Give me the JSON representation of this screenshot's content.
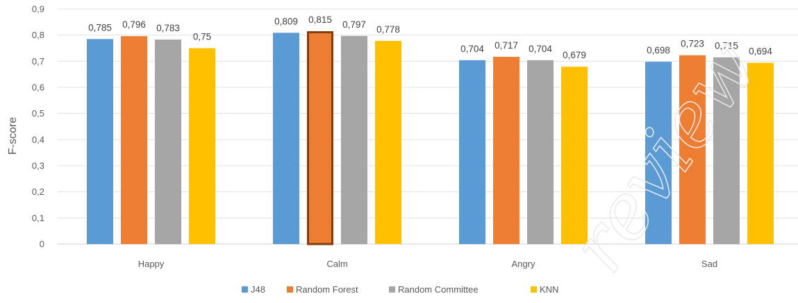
{
  "chart_data": {
    "type": "bar",
    "categories": [
      "Happy",
      "Calm",
      "Angry",
      "Sad"
    ],
    "series": [
      {
        "name": "J48",
        "values": [
          0.785,
          0.809,
          0.704,
          0.698
        ],
        "labels": [
          "0,785",
          "0,809",
          "0,704",
          "0,698"
        ],
        "color": "#5b9bd5"
      },
      {
        "name": "Random Forest",
        "values": [
          0.796,
          0.815,
          0.717,
          0.723
        ],
        "labels": [
          "0,796",
          "0,815",
          "0,717",
          "0,723"
        ],
        "color": "#ed7d31"
      },
      {
        "name": "Random Committee",
        "values": [
          0.783,
          0.797,
          0.704,
          0.715
        ],
        "labels": [
          "0,783",
          "0,797",
          "0,704",
          "0,715"
        ],
        "color": "#a5a5a5"
      },
      {
        "name": "KNN",
        "values": [
          0.75,
          0.778,
          0.679,
          0.694
        ],
        "labels": [
          "0,75",
          "0,778",
          "0,679",
          "0,694"
        ],
        "color": "#ffc000"
      }
    ],
    "title": "",
    "xlabel": "",
    "ylabel": "F-score",
    "ylim": [
      0,
      0.9
    ],
    "y_ticks": [
      0,
      0.1,
      0.2,
      0.3,
      0.4,
      0.5,
      0.6,
      0.7,
      0.8,
      0.9
    ],
    "y_tick_labels": [
      "0",
      "0,1",
      "0,2",
      "0,3",
      "0,4",
      "0,5",
      "0,6",
      "0,7",
      "0,8",
      "0,9"
    ],
    "grid": true,
    "legend_position": "bottom",
    "highlighted_bar": {
      "category": "Calm",
      "series": "Random Forest",
      "outline_color": "#843c0c"
    }
  },
  "watermark": "review"
}
